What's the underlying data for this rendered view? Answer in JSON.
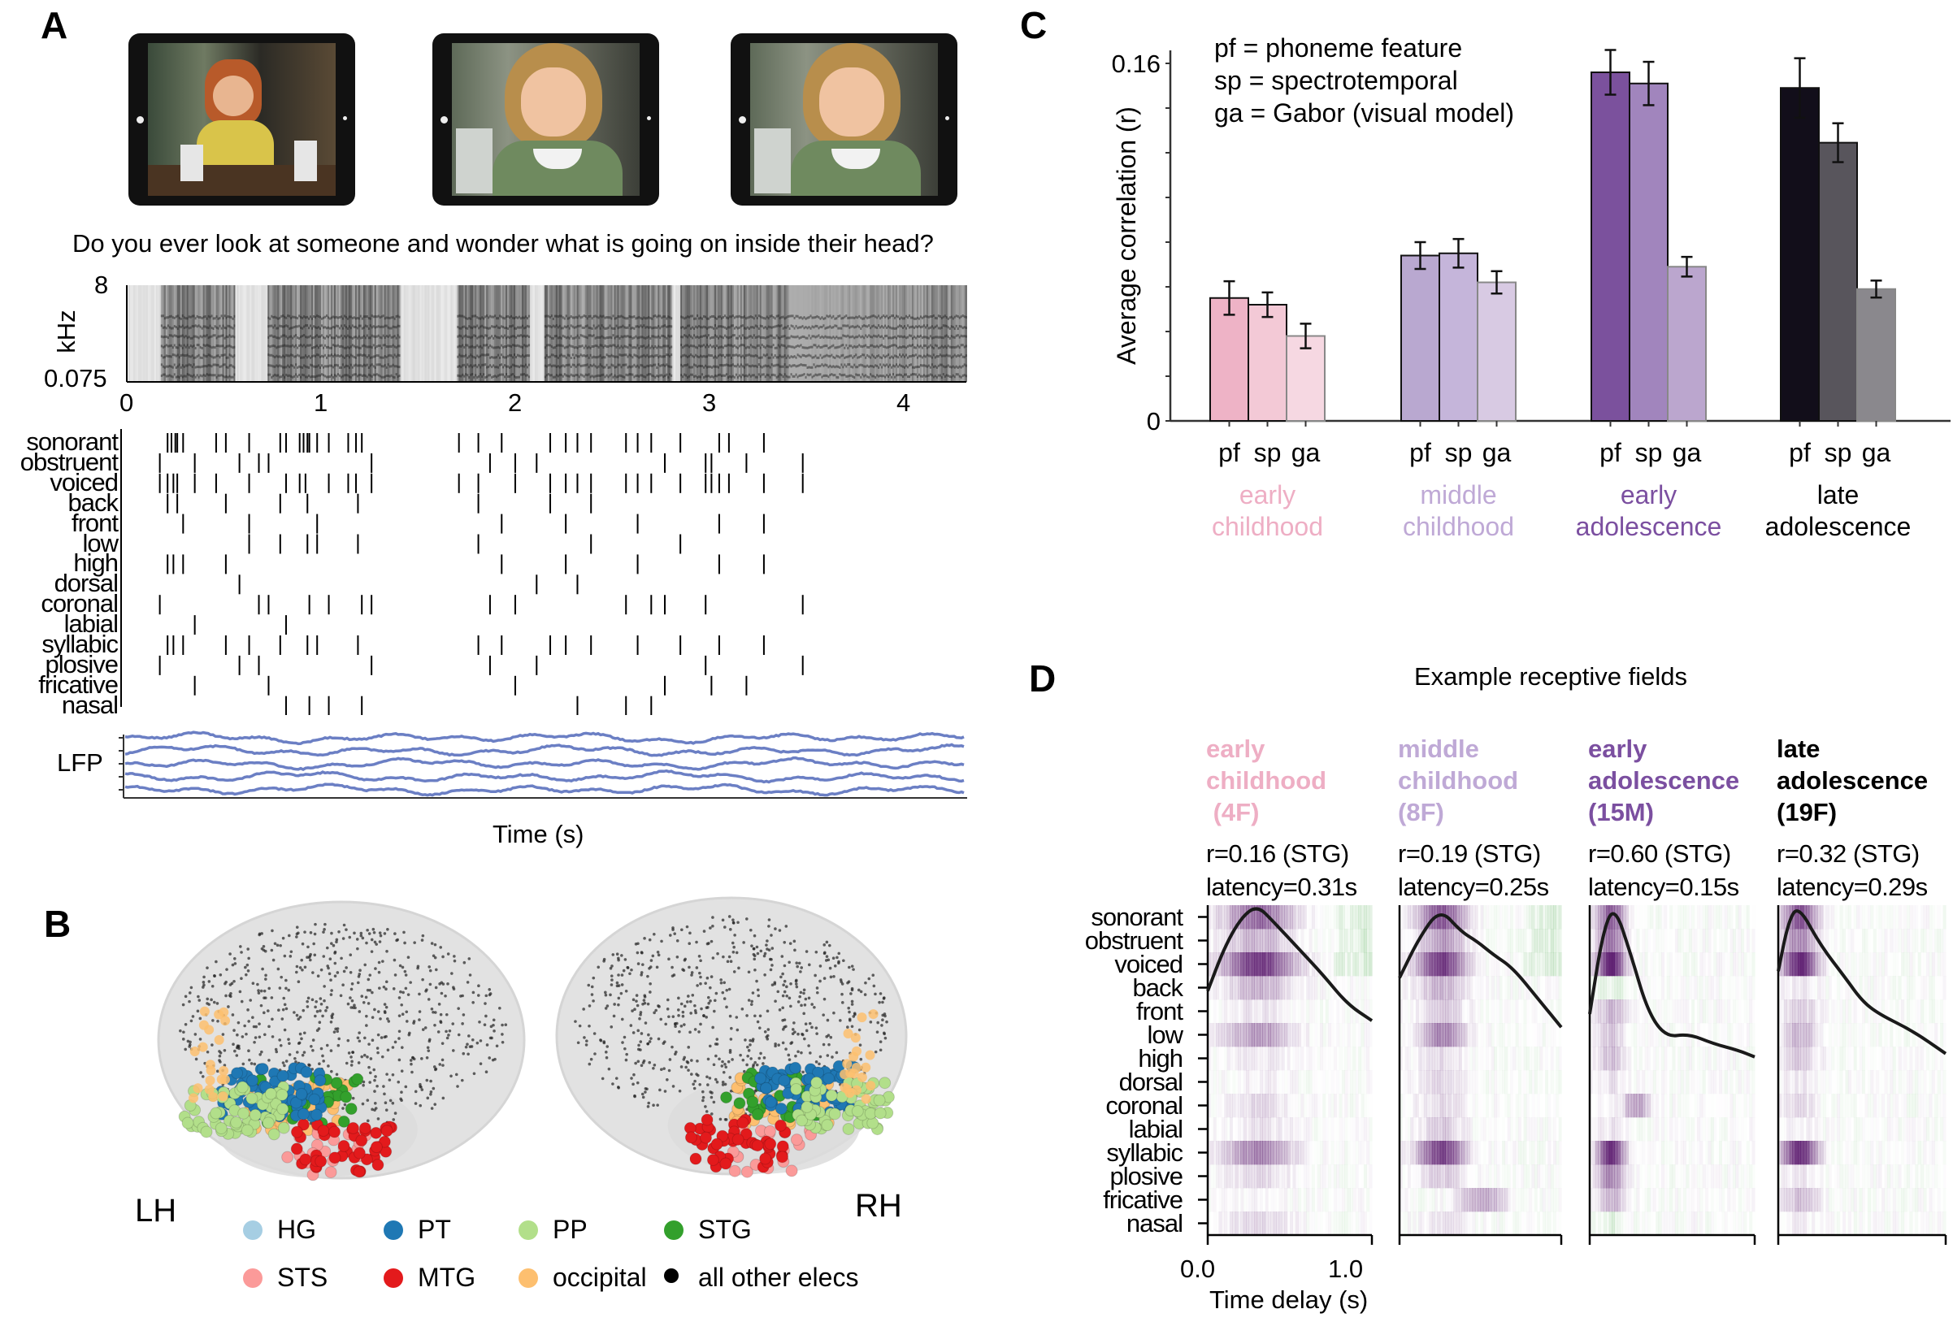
{
  "panel_a": {
    "label": "A",
    "sentence": "Do you ever look at someone and wonder what is going on inside their head?",
    "spectrogram": {
      "ylabel": "kHz",
      "ytick_top": "8",
      "ytick_bottom": "0.075"
    },
    "time_ticks": [
      {
        "value": 0,
        "label": "0"
      },
      {
        "value": 1,
        "label": "1"
      },
      {
        "value": 2,
        "label": "2"
      },
      {
        "value": 3,
        "label": "3"
      },
      {
        "value": 4,
        "label": "4"
      }
    ],
    "raster": [
      {
        "name": "sonorant",
        "times": [
          0.21,
          0.23,
          0.25,
          0.26,
          0.29,
          0.46,
          0.51,
          0.63,
          0.79,
          0.82,
          0.89,
          0.91,
          0.93,
          0.94,
          0.98,
          1.04,
          1.14,
          1.18,
          1.21,
          1.71,
          1.81,
          1.93,
          2.18,
          2.26,
          2.32,
          2.39,
          2.57,
          2.63,
          2.7,
          2.85,
          3.05,
          3.1,
          3.28
        ]
      },
      {
        "name": "obstruent",
        "times": [
          0.17,
          0.35,
          0.58,
          0.68,
          0.73,
          1.26,
          1.87,
          2.0,
          2.11,
          2.77,
          2.98,
          3.01,
          3.19,
          3.48
        ]
      },
      {
        "name": "voiced",
        "times": [
          0.17,
          0.21,
          0.24,
          0.26,
          0.35,
          0.46,
          0.63,
          0.82,
          0.89,
          0.92,
          1.04,
          1.14,
          1.18,
          1.26,
          1.71,
          1.81,
          2.0,
          2.18,
          2.26,
          2.32,
          2.39,
          2.57,
          2.63,
          2.7,
          2.85,
          2.98,
          3.01,
          3.05,
          3.1,
          3.28,
          3.48
        ]
      },
      {
        "name": "back",
        "times": [
          0.21,
          0.26,
          0.51,
          0.79,
          0.93,
          1.19,
          1.81,
          2.18,
          2.39
        ]
      },
      {
        "name": "front",
        "times": [
          0.29,
          0.63,
          0.98,
          1.93,
          2.26,
          2.63,
          3.05,
          3.28
        ]
      },
      {
        "name": "low",
        "times": [
          0.63,
          0.79,
          0.93,
          0.98,
          1.19,
          1.81,
          2.39,
          2.85
        ]
      },
      {
        "name": "high",
        "times": [
          0.21,
          0.24,
          0.29,
          0.51,
          1.93,
          2.26,
          2.63,
          3.05,
          3.28
        ]
      },
      {
        "name": "dorsal",
        "times": [
          0.58,
          2.11,
          2.32
        ]
      },
      {
        "name": "coronal",
        "times": [
          0.17,
          0.68,
          0.73,
          0.94,
          1.04,
          1.21,
          1.26,
          1.87,
          2.0,
          2.57,
          2.7,
          2.77,
          2.98,
          3.48
        ]
      },
      {
        "name": "labial",
        "times": [
          0.35,
          0.82
        ]
      },
      {
        "name": "syllabic",
        "times": [
          0.21,
          0.24,
          0.29,
          0.51,
          0.63,
          0.79,
          0.93,
          0.98,
          1.19,
          1.81,
          1.93,
          2.18,
          2.26,
          2.39,
          2.63,
          2.85,
          3.05,
          3.28
        ]
      },
      {
        "name": "plosive",
        "times": [
          0.17,
          0.58,
          0.68,
          1.26,
          1.87,
          2.11,
          2.98,
          3.48
        ]
      },
      {
        "name": "fricative",
        "times": [
          0.35,
          0.73,
          2.0,
          2.77,
          3.01,
          3.19
        ]
      },
      {
        "name": "nasal",
        "times": [
          0.82,
          0.94,
          1.04,
          1.21,
          2.32,
          2.57,
          2.7
        ]
      }
    ],
    "lfp_label": "LFP",
    "lfp_color": "#6b7fc4",
    "xlabel": "Time (s)"
  },
  "panel_b": {
    "label": "B",
    "left_hemisphere": "LH",
    "right_hemisphere": "RH",
    "legend": [
      {
        "label": "HG",
        "color": "#a6cee3"
      },
      {
        "label": "PT",
        "color": "#1f78b4"
      },
      {
        "label": "PP",
        "color": "#b2df8a"
      },
      {
        "label": "STG",
        "color": "#33a02c"
      },
      {
        "label": "STS",
        "color": "#fb9a99"
      },
      {
        "label": "MTG",
        "color": "#e31a1c"
      },
      {
        "label": "occipital",
        "color": "#fdbf6f"
      },
      {
        "label": "all other elecs",
        "color": "#000000"
      }
    ]
  },
  "chart_data": {
    "type": "bar",
    "panel_label": "C",
    "ylabel": "Average correlation (r)",
    "ylim": [
      0,
      0.16
    ],
    "ytick_labels": [
      "0",
      "0.16"
    ],
    "minor_tick_step": 0.02,
    "legend_text": [
      "pf = phoneme feature",
      "sp = spectrotemporal",
      "ga = Gabor (visual model)"
    ],
    "legend_placement": "top-left",
    "grid": false,
    "subcategories": [
      "pf",
      "sp",
      "ga"
    ],
    "groups": [
      {
        "label_lines": [
          "early",
          "childhood"
        ],
        "label_color": "#eeaec4",
        "values": [
          0.055,
          0.052,
          0.038
        ],
        "errors": [
          0.0075,
          0.0055,
          0.0055
        ],
        "colors": [
          "#eeb3c6",
          "#f3c9d6",
          "#f6d8e2"
        ]
      },
      {
        "label_lines": [
          "middle",
          "childhood"
        ],
        "label_color": "#bfa9d6",
        "values": [
          0.074,
          0.075,
          0.062
        ],
        "errors": [
          0.006,
          0.0064,
          0.005
        ],
        "colors": [
          "#b9a8d0",
          "#c5b5da",
          "#d8cae3"
        ]
      },
      {
        "label_lines": [
          "early",
          "adolescence"
        ],
        "label_color": "#7b4fa0",
        "values": [
          0.156,
          0.151,
          0.069
        ],
        "errors": [
          0.01,
          0.0097,
          0.0044
        ],
        "colors": [
          "#7b519d",
          "#a185bd",
          "#bba6ce"
        ]
      },
      {
        "label_lines": [
          "late",
          "adolescence"
        ],
        "label_color": "#000000",
        "values": [
          0.149,
          0.1245,
          0.059
        ],
        "errors": [
          0.0133,
          0.0087,
          0.0038
        ],
        "colors": [
          "#120e1a",
          "#58555c",
          "#8a888d"
        ]
      }
    ]
  },
  "panel_d": {
    "label": "D",
    "title": "Example receptive fields",
    "features": [
      "sonorant",
      "obstruent",
      "voiced",
      "back",
      "front",
      "low",
      "high",
      "dorsal",
      "coronal",
      "labial",
      "syllabic",
      "plosive",
      "fricative",
      "nasal"
    ],
    "panels": [
      {
        "title_lines": [
          "early",
          "childhood",
          " (4F)"
        ],
        "color": "#eeaec4",
        "r_text": "r=0.16 (STG)",
        "latency_text": "latency=0.31s"
      },
      {
        "title_lines": [
          "middle",
          "childhood",
          "(8F)"
        ],
        "color": "#bfa9d6",
        "r_text": "r=0.19 (STG)",
        "latency_text": "latency=0.25s"
      },
      {
        "title_lines": [
          "early",
          "adolescence",
          "(15M)"
        ],
        "color": "#7b4fa0",
        "r_text": "r=0.60 (STG)",
        "latency_text": "latency=0.15s"
      },
      {
        "title_lines": [
          "late",
          "adolescence",
          "(19F)"
        ],
        "color": "#000000",
        "r_text": "r=0.32 (STG)",
        "latency_text": "latency=0.29s"
      }
    ],
    "xtick_start": "0.0",
    "xtick_end": "1.0",
    "xlabel": "Time delay (s)",
    "colormap": {
      "positive": "#5b1a6e",
      "negative": "#3fa33f"
    }
  }
}
